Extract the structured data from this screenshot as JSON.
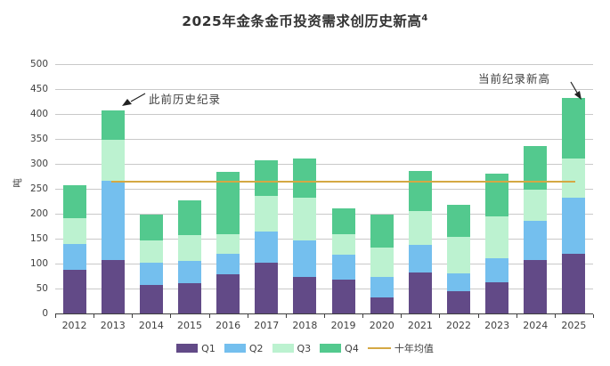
{
  "title": {
    "text": "2025年金条金币投资需求创历史新高",
    "superscript": "4"
  },
  "chart_data": {
    "type": "bar",
    "stacked": true,
    "title": "2025年金条金币投资需求创历史新高4",
    "ylabel": "吨",
    "unit": "吨",
    "ylim": [
      0,
      500
    ],
    "ytick_step": 50,
    "grid": true,
    "legend_position": "bottom",
    "categories": [
      "2012",
      "2013",
      "2014",
      "2015",
      "2016",
      "2017",
      "2018",
      "2019",
      "2020",
      "2021",
      "2022",
      "2023",
      "2024",
      "2025"
    ],
    "series": [
      {
        "name": "Q1",
        "color": "#624a87",
        "values": [
          88,
          108,
          58,
          60,
          78,
          102,
          73,
          67,
          33,
          83,
          44,
          63,
          107,
          120
        ]
      },
      {
        "name": "Q2",
        "color": "#74bfee",
        "values": [
          51,
          158,
          43,
          45,
          42,
          62,
          73,
          50,
          40,
          55,
          37,
          48,
          79,
          113
        ]
      },
      {
        "name": "Q3",
        "color": "#bcf2d0",
        "values": [
          52,
          82,
          45,
          52,
          39,
          71,
          86,
          42,
          59,
          67,
          73,
          84,
          62,
          78
        ]
      },
      {
        "name": "Q4",
        "color": "#53c98e",
        "values": [
          66,
          59,
          52,
          70,
          125,
          73,
          78,
          51,
          66,
          81,
          64,
          85,
          88,
          121
        ]
      }
    ],
    "average_line": {
      "label": "十年均值",
      "value": 265,
      "color": "#d5a843"
    },
    "annotations": [
      {
        "text": "此前历史纪录",
        "target_year": "2013"
      },
      {
        "text": "当前纪录新高",
        "target_year": "2025"
      }
    ],
    "colors": {
      "grid": "#c9c9c9",
      "axis": "#3f3f3f",
      "text": "#3f3f3f"
    }
  }
}
